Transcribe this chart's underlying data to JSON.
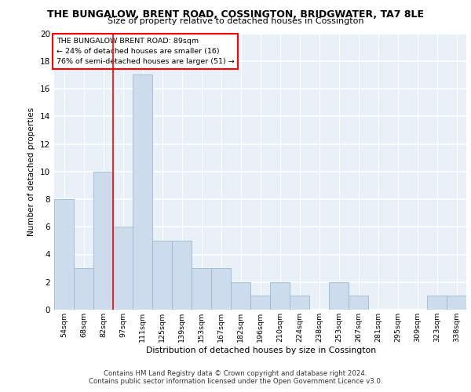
{
  "title": "THE BUNGALOW, BRENT ROAD, COSSINGTON, BRIDGWATER, TA7 8LE",
  "subtitle": "Size of property relative to detached houses in Cossington",
  "xlabel": "Distribution of detached houses by size in Cossington",
  "ylabel": "Number of detached properties",
  "categories": [
    "54sqm",
    "68sqm",
    "82sqm",
    "97sqm",
    "111sqm",
    "125sqm",
    "139sqm",
    "153sqm",
    "167sqm",
    "182sqm",
    "196sqm",
    "210sqm",
    "224sqm",
    "238sqm",
    "253sqm",
    "267sqm",
    "281sqm",
    "295sqm",
    "309sqm",
    "323sqm",
    "338sqm"
  ],
  "values": [
    8,
    3,
    10,
    6,
    17,
    5,
    5,
    3,
    3,
    2,
    1,
    2,
    1,
    0,
    2,
    1,
    0,
    0,
    0,
    1,
    1
  ],
  "bar_color": "#cddcec",
  "bar_edge_color": "#9ab8d4",
  "background_color": "#eaf0f7",
  "grid_color": "#ffffff",
  "red_line_x": 2.5,
  "annotation_line1": "THE BUNGALOW BRENT ROAD: 89sqm",
  "annotation_line2": "← 24% of detached houses are smaller (16)",
  "annotation_line3": "76% of semi-detached houses are larger (51) →",
  "ylim": [
    0,
    20
  ],
  "yticks": [
    0,
    2,
    4,
    6,
    8,
    10,
    12,
    14,
    16,
    18,
    20
  ],
  "footer_line1": "Contains HM Land Registry data © Crown copyright and database right 2024.",
  "footer_line2": "Contains public sector information licensed under the Open Government Licence v3.0."
}
